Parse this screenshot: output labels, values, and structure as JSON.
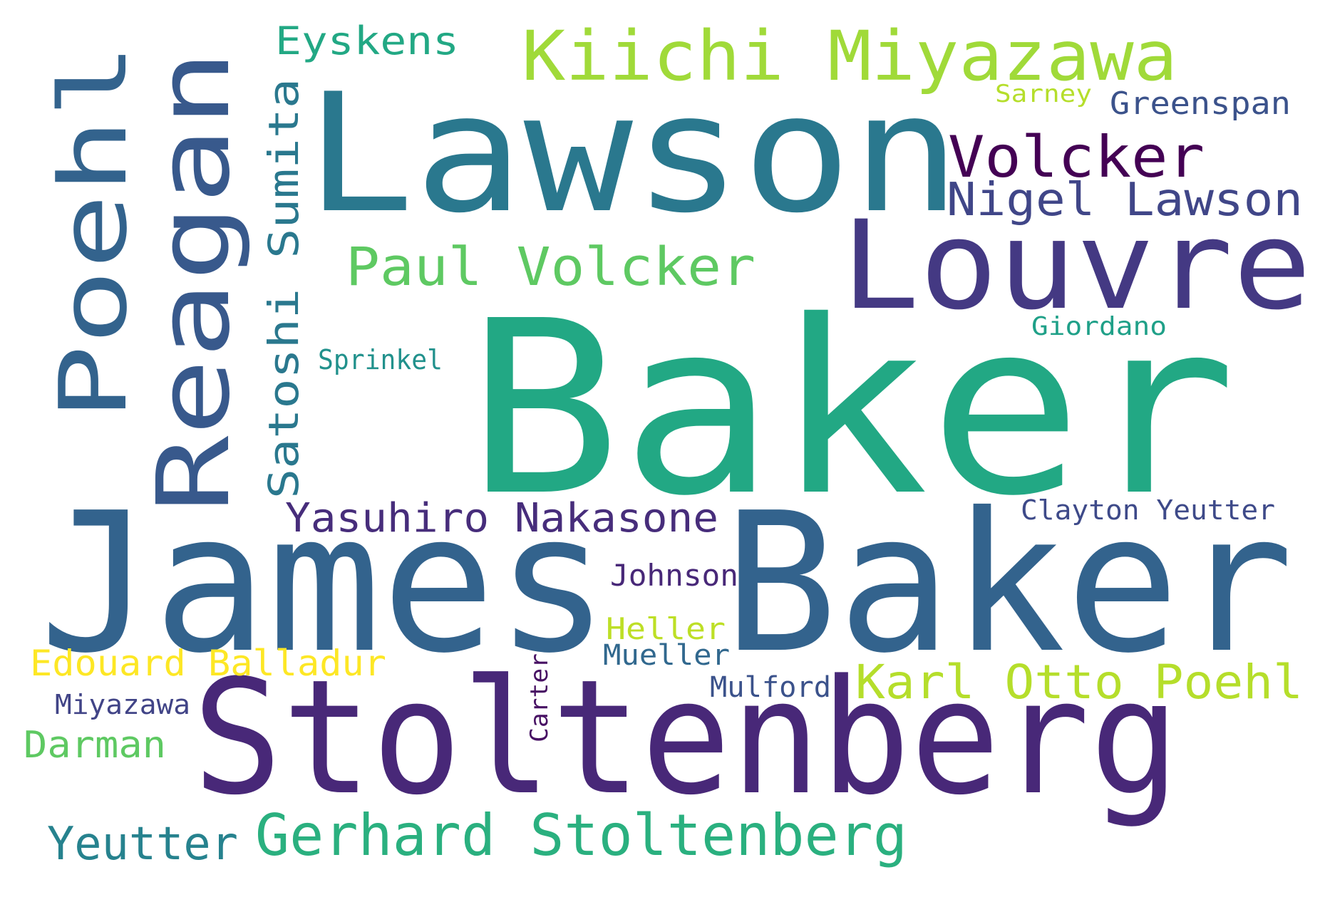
{
  "words": [
    {
      "text": "Baker",
      "color": "#22a884"
    },
    {
      "text": "Lawson",
      "color": "#2a788e"
    },
    {
      "text": "James Baker",
      "color": "#33638d"
    },
    {
      "text": "Stoltenberg",
      "color": "#482878"
    },
    {
      "text": "Louvre",
      "color": "#443983"
    },
    {
      "text": "Reagan",
      "color": "#38598c"
    },
    {
      "text": "Poehl",
      "color": "#33638d"
    },
    {
      "text": "Kiichi Miyazawa",
      "color": "#a0da39"
    },
    {
      "text": "Volcker",
      "color": "#440154"
    },
    {
      "text": "Nigel Lawson",
      "color": "#404688"
    },
    {
      "text": "Paul Volcker",
      "color": "#5ec962"
    },
    {
      "text": "Satoshi Sumita",
      "color": "#2a788e"
    },
    {
      "text": "Eyskens",
      "color": "#22a884"
    },
    {
      "text": "Greenspan",
      "color": "#3b528b"
    },
    {
      "text": "Sarney",
      "color": "#b5de2b"
    },
    {
      "text": "Giordano",
      "color": "#1fa088"
    },
    {
      "text": "Sprinkel",
      "color": "#21918c"
    },
    {
      "text": "Yasuhiro Nakasone",
      "color": "#472d7b"
    },
    {
      "text": "Clayton Yeutter",
      "color": "#3e4a89"
    },
    {
      "text": "Johnson",
      "color": "#482878"
    },
    {
      "text": "Heller",
      "color": "#bddf26"
    },
    {
      "text": "Mueller",
      "color": "#31688e"
    },
    {
      "text": "Edouard Balladur",
      "color": "#fde725"
    },
    {
      "text": "Carter",
      "color": "#471063"
    },
    {
      "text": "Mulford",
      "color": "#3b528b"
    },
    {
      "text": "Karl Otto Poehl",
      "color": "#b5de2b"
    },
    {
      "text": "Miyazawa",
      "color": "#414487"
    },
    {
      "text": "Darman",
      "color": "#5ec962"
    },
    {
      "text": "Yeutter",
      "color": "#26828e"
    },
    {
      "text": "Gerhard Stoltenberg",
      "color": "#2ab07f"
    }
  ]
}
